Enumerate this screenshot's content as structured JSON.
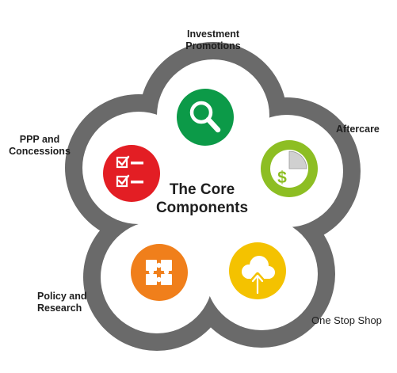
{
  "diagram": {
    "center_title_line1": "The Core",
    "center_title_line2": "Components",
    "components": [
      {
        "id": "investment",
        "label_line1": "Investment",
        "label_line2": "Promotions",
        "color": "#0c9a48",
        "icon": "magnifier-icon"
      },
      {
        "id": "aftercare",
        "label_line1": "Aftercare",
        "label_line2": "",
        "color": "#8dbe23",
        "icon": "pie-dollar-icon"
      },
      {
        "id": "onestop",
        "label_line1": "One Stop Shop",
        "label_line2": "",
        "color": "#f4c200",
        "icon": "cloud-upload-icon"
      },
      {
        "id": "policy",
        "label_line1": "Policy and",
        "label_line2": "Research",
        "color": "#f07f1b",
        "icon": "puzzle-icon"
      },
      {
        "id": "ppp",
        "label_line1": "PPP and",
        "label_line2": "Concessions",
        "color": "#e31e24",
        "icon": "checklist-icon"
      }
    ],
    "colors": {
      "ring": "#6a6a6a",
      "inner": "#ffffff",
      "text": "#1e1e1e",
      "icon_white": "#ffffff"
    }
  }
}
